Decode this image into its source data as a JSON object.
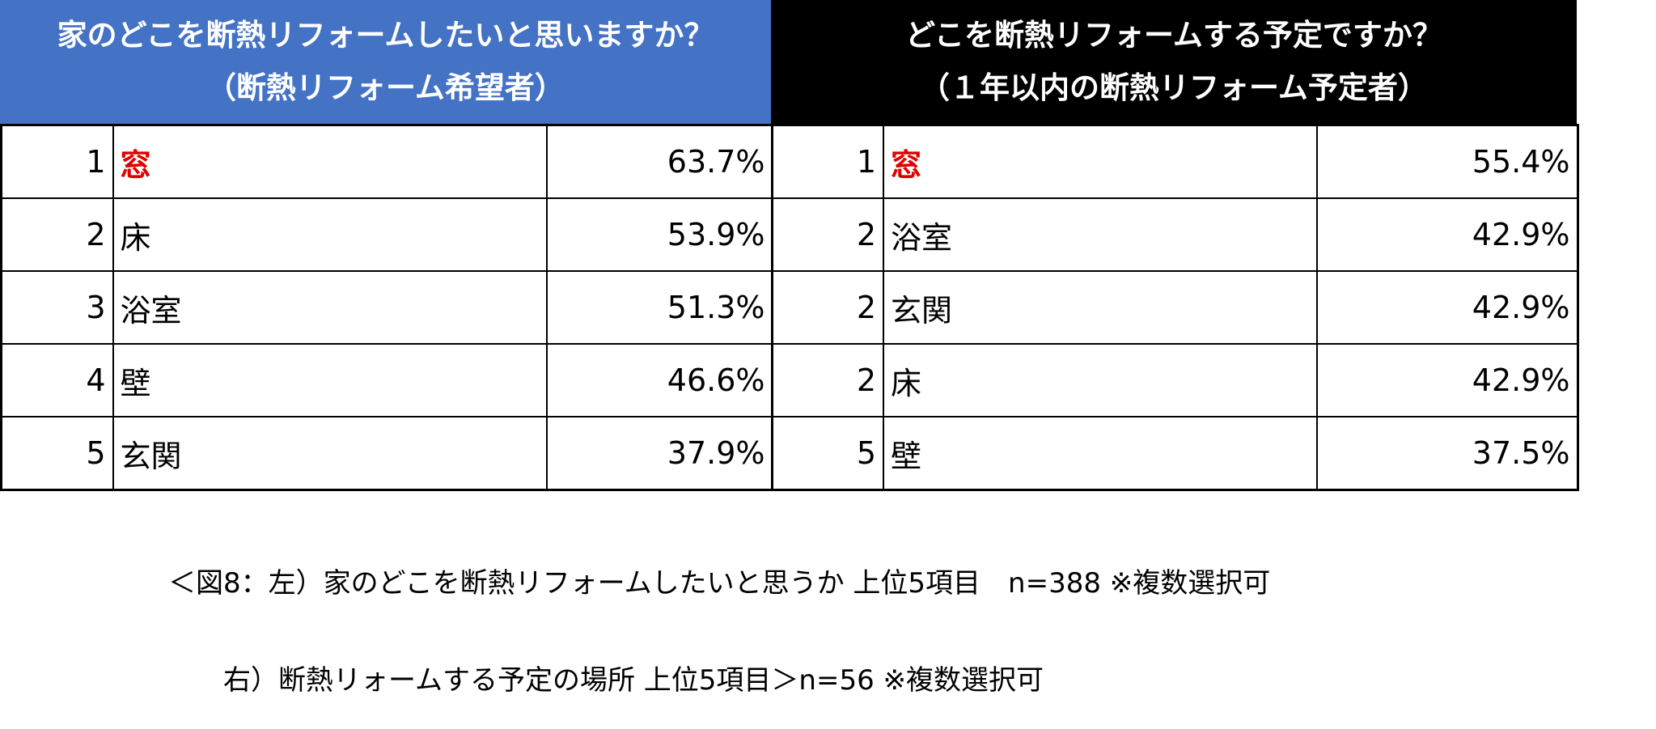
{
  "chart_data": [
    {
      "type": "table",
      "title_lines": [
        "家のどこを断熱リフォームしたいと思いますか？",
        "（断熱リフォーム希望者）"
      ],
      "header_color": "#4472c4",
      "highlight_color": "#e00000",
      "rows": [
        {
          "rank": "1",
          "item": "窓",
          "value": 63.7,
          "value_label": "63.7%"
        },
        {
          "rank": "2",
          "item": "床",
          "value": 53.9,
          "value_label": "53.9%"
        },
        {
          "rank": "3",
          "item": "浴室",
          "value": 51.3,
          "value_label": "51.3%"
        },
        {
          "rank": "4",
          "item": "壁",
          "value": 46.6,
          "value_label": "46.6%"
        },
        {
          "rank": "5",
          "item": "玄関",
          "value": 37.9,
          "value_label": "37.9%"
        }
      ]
    },
    {
      "type": "table",
      "title_lines": [
        "どこを断熱リフォームする予定ですか？",
        "（１年以内の断熱リフォーム予定者）"
      ],
      "header_color": "#000000",
      "highlight_color": "#e00000",
      "rows": [
        {
          "rank": "1",
          "item": "窓",
          "value": 55.4,
          "value_label": "55.4%"
        },
        {
          "rank": "2",
          "item": "浴室",
          "value": 42.9,
          "value_label": "42.9%"
        },
        {
          "rank": "2",
          "item": "玄関",
          "value": 42.9,
          "value_label": "42.9%"
        },
        {
          "rank": "2",
          "item": "床",
          "value": 42.9,
          "value_label": "42.9%"
        },
        {
          "rank": "5",
          "item": "壁",
          "value": 37.5,
          "value_label": "37.5%"
        }
      ]
    }
  ],
  "caption": {
    "line1": "＜図8：左）家のどこを断熱リフォームしたいと思うか 上位5項目　n=388 ※複数選択可",
    "line2": "　　右）断熱リォームする予定の場所 上位5項目＞n=56 ※複数選択可"
  }
}
